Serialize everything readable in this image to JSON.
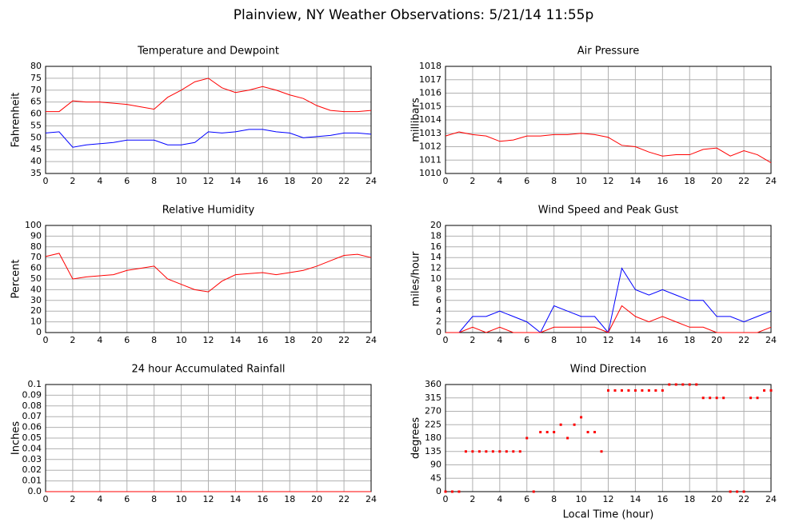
{
  "title": "Plainview, NY Weather Observations: 5/21/14 11:55p",
  "chart_data": [
    {
      "type": "line",
      "title": "Temperature and Dewpoint",
      "ylabel": "Fahrenheit",
      "x": [
        0,
        1,
        2,
        3,
        4,
        5,
        6,
        7,
        8,
        9,
        10,
        11,
        12,
        13,
        14,
        15,
        16,
        17,
        18,
        19,
        20,
        21,
        22,
        23,
        24
      ],
      "series": [
        {
          "color": "#ff0000",
          "values": [
            61,
            61,
            65.5,
            65,
            65,
            64.5,
            64,
            63,
            62,
            67,
            70,
            73.5,
            75,
            71,
            69,
            70,
            71.5,
            70,
            68,
            66.5,
            63.5,
            61.5,
            61,
            61,
            61.5
          ]
        },
        {
          "color": "#0000ff",
          "values": [
            52,
            52.5,
            46,
            47,
            47.5,
            48,
            49,
            49,
            49,
            47,
            47,
            48,
            52.5,
            52,
            52.5,
            53.5,
            53.5,
            52.5,
            52,
            50,
            50.5,
            51,
            52,
            52,
            51.5
          ]
        }
      ],
      "xlim": [
        0,
        24
      ],
      "xticks": [
        0,
        2,
        4,
        6,
        8,
        10,
        12,
        14,
        16,
        18,
        20,
        22,
        24
      ],
      "ylim": [
        35,
        80
      ],
      "yticks": [
        35,
        40,
        45,
        50,
        55,
        60,
        65,
        70,
        75,
        80
      ],
      "grid": true
    },
    {
      "type": "line",
      "title": "Air Pressure",
      "ylabel": "millibars",
      "x": [
        0,
        1,
        2,
        3,
        4,
        5,
        6,
        7,
        8,
        9,
        10,
        11,
        12,
        13,
        14,
        15,
        16,
        17,
        18,
        19,
        20,
        21,
        22,
        23,
        24
      ],
      "series": [
        {
          "color": "#ff0000",
          "values": [
            1012.8,
            1013.1,
            1012.9,
            1012.8,
            1012.4,
            1012.5,
            1012.8,
            1012.8,
            1012.9,
            1012.9,
            1013.0,
            1012.9,
            1012.7,
            1012.1,
            1012.0,
            1011.6,
            1011.3,
            1011.4,
            1011.4,
            1011.8,
            1011.9,
            1011.3,
            1011.7,
            1011.4,
            1010.8
          ]
        }
      ],
      "xlim": [
        0,
        24
      ],
      "xticks": [
        0,
        2,
        4,
        6,
        8,
        10,
        12,
        14,
        16,
        18,
        20,
        22,
        24
      ],
      "ylim": [
        1010,
        1018
      ],
      "yticks": [
        1010,
        1011,
        1012,
        1013,
        1014,
        1015,
        1016,
        1017,
        1018
      ],
      "grid": true
    },
    {
      "type": "line",
      "title": "Relative Humidity",
      "ylabel": "Percent",
      "x": [
        0,
        1,
        2,
        3,
        4,
        5,
        6,
        7,
        8,
        9,
        10,
        11,
        12,
        13,
        14,
        15,
        16,
        17,
        18,
        19,
        20,
        21,
        22,
        23,
        24
      ],
      "series": [
        {
          "color": "#ff0000",
          "values": [
            71,
            74,
            50,
            52,
            53,
            54,
            58,
            60,
            62,
            50,
            45,
            40,
            38,
            48,
            54,
            55,
            56,
            54,
            56,
            58,
            62,
            67,
            72,
            73,
            70
          ]
        }
      ],
      "xlim": [
        0,
        24
      ],
      "xticks": [
        0,
        2,
        4,
        6,
        8,
        10,
        12,
        14,
        16,
        18,
        20,
        22,
        24
      ],
      "ylim": [
        0,
        100
      ],
      "yticks": [
        0,
        10,
        20,
        30,
        40,
        50,
        60,
        70,
        80,
        90,
        100
      ],
      "grid": true
    },
    {
      "type": "line",
      "title": "Wind Speed and Peak Gust",
      "ylabel": "miles/hour",
      "x": [
        0,
        1,
        2,
        3,
        4,
        5,
        6,
        7,
        8,
        9,
        10,
        11,
        12,
        13,
        14,
        15,
        16,
        17,
        18,
        19,
        20,
        21,
        22,
        23,
        24
      ],
      "series": [
        {
          "color": "#0000ff",
          "values": [
            0,
            0,
            3,
            3,
            4,
            3,
            2,
            0,
            5,
            4,
            3,
            3,
            0,
            12,
            8,
            7,
            8,
            7,
            6,
            6,
            3,
            3,
            2,
            3,
            4
          ]
        },
        {
          "color": "#ff0000",
          "values": [
            0,
            0,
            1,
            0,
            1,
            0,
            0,
            0,
            1,
            1,
            1,
            1,
            0,
            5,
            3,
            2,
            3,
            2,
            1,
            1,
            0,
            0,
            0,
            0,
            1
          ]
        }
      ],
      "xlim": [
        0,
        24
      ],
      "xticks": [
        0,
        2,
        4,
        6,
        8,
        10,
        12,
        14,
        16,
        18,
        20,
        22,
        24
      ],
      "ylim": [
        0,
        20
      ],
      "yticks": [
        0,
        2,
        4,
        6,
        8,
        10,
        12,
        14,
        16,
        18,
        20
      ],
      "grid": true
    },
    {
      "type": "line",
      "title": "24 hour Accumulated Rainfall",
      "ylabel": "Inches",
      "x": [
        0,
        24
      ],
      "series": [
        {
          "color": "#ff0000",
          "values": [
            0,
            0
          ]
        }
      ],
      "xlim": [
        0,
        24
      ],
      "xticks": [
        0,
        2,
        4,
        6,
        8,
        10,
        12,
        14,
        16,
        18,
        20,
        22,
        24
      ],
      "ylim": [
        0,
        0.1
      ],
      "yticks": [
        {
          "value": 0,
          "label": "0.0"
        },
        0.01,
        0.02,
        0.03,
        0.04,
        0.05,
        0.06,
        0.07,
        0.08,
        0.09,
        0.1
      ],
      "grid": true
    },
    {
      "type": "scatter",
      "title": "Wind Direction",
      "ylabel": "degrees",
      "xlabel": "Local Time (hour)",
      "x": [
        0,
        0.5,
        1,
        1.5,
        2,
        2.5,
        3,
        3.5,
        4,
        4.5,
        5,
        5.5,
        6,
        6.5,
        7,
        7.5,
        8,
        8.5,
        9,
        9.5,
        10,
        10.5,
        11,
        11.5,
        12,
        12.5,
        13,
        13.5,
        14,
        14.5,
        15,
        15.5,
        16,
        16.5,
        17,
        17.5,
        18,
        18.5,
        19,
        19.5,
        20,
        20.5,
        21,
        21.5,
        22,
        22.5,
        23,
        23.5,
        24
      ],
      "series": [
        {
          "color": "#ff0000",
          "values": [
            0,
            0,
            0,
            135,
            135,
            135,
            135,
            135,
            135,
            135,
            135,
            135,
            180,
            0,
            200,
            200,
            200,
            225,
            180,
            225,
            250,
            200,
            200,
            135,
            340,
            340,
            340,
            340,
            340,
            340,
            340,
            340,
            340,
            360,
            360,
            360,
            360,
            360,
            315,
            315,
            315,
            315,
            0,
            0,
            0,
            315,
            315,
            340,
            340
          ]
        }
      ],
      "xlim": [
        0,
        24
      ],
      "xticks": [
        0,
        2,
        4,
        6,
        8,
        10,
        12,
        14,
        16,
        18,
        20,
        22,
        24
      ],
      "ylim": [
        0,
        360
      ],
      "yticks": [
        0,
        45,
        90,
        135,
        180,
        225,
        270,
        315,
        360
      ],
      "grid": true
    }
  ]
}
